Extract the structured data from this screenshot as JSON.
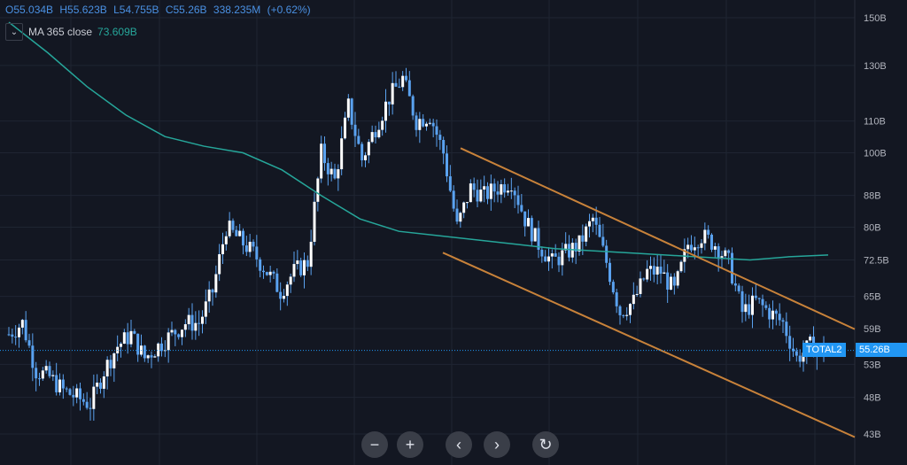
{
  "legend": {
    "open": "O55.034B",
    "high": "H55.623B",
    "low": "L54.755B",
    "close": "C55.26B",
    "volume": "338.235M",
    "change": "(+0.62%)"
  },
  "indicator": {
    "toggle_icon": "chevron-down-icon",
    "name": "MA 365 close",
    "value": "73.609B"
  },
  "symbol_tag": {
    "label": "TOTAL2",
    "price": "55.26B"
  },
  "controls": {
    "zoom_out": "−",
    "zoom_in": "+",
    "scroll_left": "‹",
    "scroll_right": "›",
    "reset": "↻"
  },
  "colors": {
    "background": "#131722",
    "candle": "#5aa2f0",
    "candle_dim": "#ffffff",
    "ma": "#26a69a",
    "channel": "#c8823a",
    "price_tag": "#2196f3",
    "grid": "#1f2532"
  },
  "chart_data": {
    "type": "candlestick",
    "y_scale": "log",
    "ylim": [
      43,
      150
    ],
    "y_ticks": [
      {
        "v": 150,
        "label": "150B"
      },
      {
        "v": 130,
        "label": "130B"
      },
      {
        "v": 110,
        "label": "110B"
      },
      {
        "v": 100,
        "label": "100B"
      },
      {
        "v": 88,
        "label": "88B"
      },
      {
        "v": 80,
        "label": "80B"
      },
      {
        "v": 72.5,
        "label": "72.5B"
      },
      {
        "v": 65,
        "label": "65B"
      },
      {
        "v": 59,
        "label": "59B"
      },
      {
        "v": 53,
        "label": "53B"
      },
      {
        "v": 48,
        "label": "48B"
      },
      {
        "v": 43,
        "label": "43B"
      }
    ],
    "closes": [
      58,
      60,
      52,
      51,
      49,
      48,
      47,
      52,
      56,
      58,
      54,
      56,
      58,
      60,
      60,
      66,
      80,
      77,
      74,
      70,
      66,
      70,
      72,
      100,
      92,
      115,
      98,
      108,
      118,
      125,
      110,
      112,
      100,
      80,
      90,
      88,
      90,
      92,
      82,
      76,
      72,
      74,
      76,
      82,
      72,
      62,
      64,
      70,
      70,
      66,
      76,
      78,
      76,
      72,
      62,
      64,
      62,
      60,
      54,
      56,
      55.26
    ],
    "ma_365": [
      148,
      135,
      122,
      112,
      105,
      102,
      100,
      95,
      88,
      82,
      79,
      78,
      77,
      76,
      75,
      74.5,
      74,
      73.5,
      73,
      72.5,
      73.2,
      73.6
    ],
    "current_price": 55.26,
    "channel": {
      "upper": [
        101.4,
        58.9
      ],
      "lower": [
        74.1,
        42.6
      ]
    }
  }
}
